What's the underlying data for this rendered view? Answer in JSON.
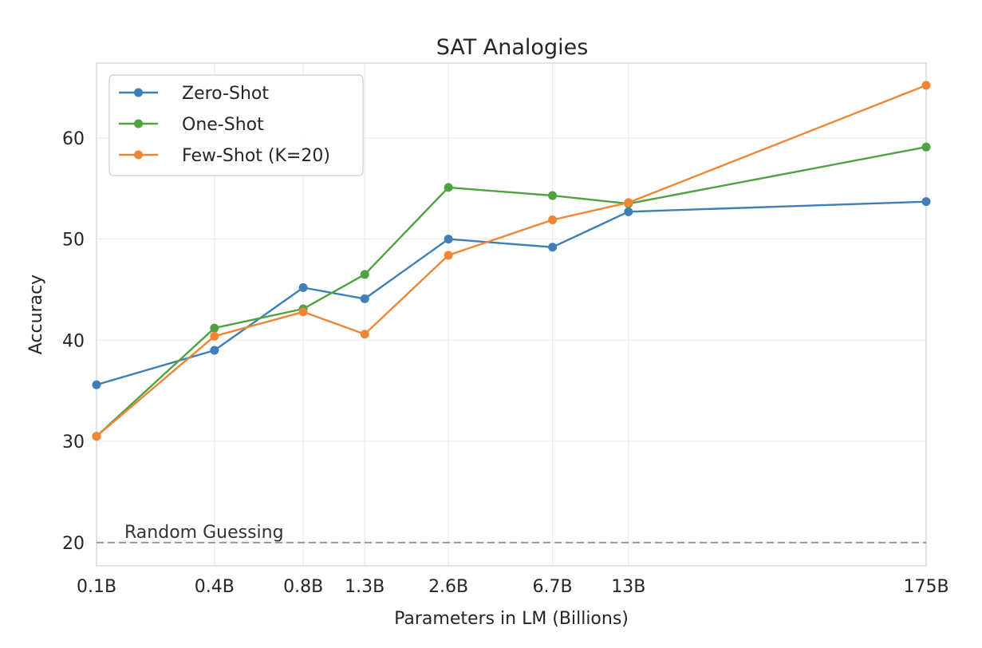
{
  "chart_data": {
    "type": "line",
    "title": "SAT Analogies",
    "xlabel": "Parameters in LM (Billions)",
    "ylabel": "Accuracy",
    "x_scale": "log",
    "categories": [
      "0.1B",
      "0.4B",
      "0.8B",
      "1.3B",
      "2.6B",
      "6.7B",
      "13B",
      "175B"
    ],
    "x": [
      0.125,
      0.35,
      0.76,
      1.3,
      2.7,
      6.7,
      13,
      175
    ],
    "xlim": [
      0.125,
      175
    ],
    "ylim": [
      17.7,
      67.4
    ],
    "yticks": [
      20,
      30,
      40,
      50,
      60
    ],
    "grid": true,
    "legend_position": "top-left",
    "series": [
      {
        "name": "Zero-Shot",
        "color": "#3f7fb5",
        "values": [
          35.6,
          39.0,
          45.2,
          44.1,
          50.0,
          49.2,
          52.7,
          53.7
        ]
      },
      {
        "name": "One-Shot",
        "color": "#4fa23f",
        "values": [
          30.5,
          41.2,
          43.1,
          46.5,
          55.1,
          54.3,
          53.5,
          59.1
        ]
      },
      {
        "name": "Few-Shot (K=20)",
        "color": "#ef8636",
        "values": [
          30.5,
          40.4,
          42.8,
          40.6,
          48.4,
          51.9,
          53.6,
          65.2
        ]
      }
    ],
    "reference_line": {
      "label": "Random Guessing",
      "value": 20,
      "color": "#999999",
      "style": "dashed"
    }
  }
}
